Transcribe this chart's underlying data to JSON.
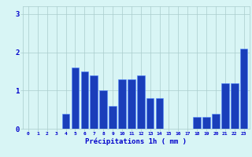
{
  "hours": [
    0,
    1,
    2,
    3,
    4,
    5,
    6,
    7,
    8,
    9,
    10,
    11,
    12,
    13,
    14,
    15,
    16,
    17,
    18,
    19,
    20,
    21,
    22,
    23
  ],
  "values": [
    0,
    0,
    0,
    0,
    0.4,
    1.6,
    1.5,
    1.4,
    1.0,
    0.6,
    1.3,
    1.3,
    1.4,
    0.8,
    0.8,
    0,
    0,
    0,
    0.3,
    0.3,
    0.4,
    1.2,
    1.2,
    2.1
  ],
  "bar_color": "#1a3eba",
  "bar_edge_color": "#5588ff",
  "background_color": "#d8f5f5",
  "grid_color": "#aacccc",
  "axis_label": "Précipitations 1h ( mm )",
  "xlabel_color": "#0000cc",
  "tick_color": "#0000cc",
  "ylim": [
    0,
    3.2
  ],
  "yticks": [
    0,
    1,
    2,
    3
  ],
  "ytick_labels": [
    "0",
    "1",
    "2",
    "3"
  ]
}
